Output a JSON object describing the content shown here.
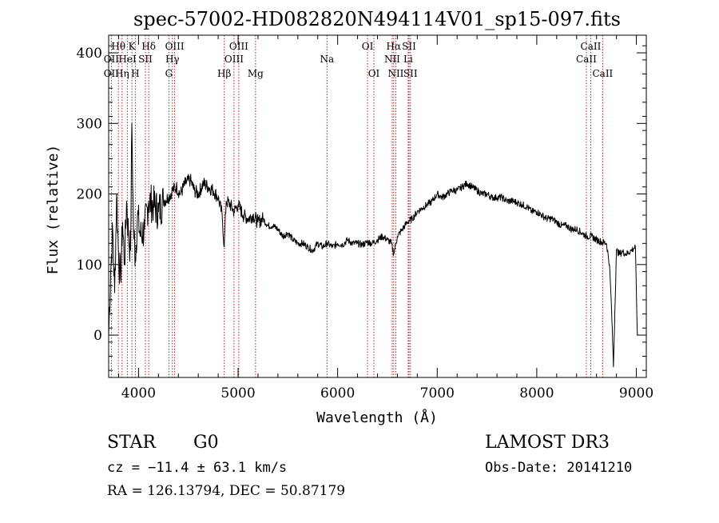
{
  "chart_data": {
    "type": "line",
    "title": "spec-57002-HD082820N494114V01_sp15-097.fits",
    "xlabel": "Wavelength (Å)",
    "ylabel": "Flux (relative)",
    "xlim": [
      3700,
      9100
    ],
    "ylim": [
      -60,
      425
    ],
    "x_ticks": [
      4000,
      5000,
      6000,
      7000,
      8000,
      9000
    ],
    "x_tick_labels": [
      "4000",
      "5000",
      "6000",
      "7000",
      "8000",
      "9000"
    ],
    "y_ticks": [
      0,
      100,
      200,
      300,
      400
    ],
    "y_tick_labels": [
      "0",
      "100",
      "200",
      "300",
      "400"
    ],
    "grid": false,
    "line_color": "#000000",
    "marker_color": "#b22222",
    "series": [
      {
        "x": [
          3700,
          3720,
          3740,
          3760,
          3780,
          3800,
          3820,
          3840,
          3860,
          3880,
          3900,
          3920,
          3933,
          3950,
          3968,
          3990,
          4020,
          4060,
          4100,
          4150,
          4200,
          4250,
          4300,
          4340,
          4380,
          4420,
          4470,
          4520,
          4560,
          4600,
          4650,
          4700,
          4750,
          4800,
          4840,
          4861,
          4880,
          4920,
          4960,
          5000,
          5050,
          5100,
          5150,
          5200,
          5250,
          5300,
          5350,
          5400,
          5450,
          5500,
          5550,
          5600,
          5650,
          5700,
          5750,
          5800,
          5850,
          5893,
          5950,
          6000,
          6050,
          6100,
          6150,
          6200,
          6250,
          6300,
          6350,
          6400,
          6450,
          6500,
          6540,
          6563,
          6600,
          6650,
          6700,
          6750,
          6800,
          6850,
          6900,
          6950,
          7000,
          7050,
          7100,
          7150,
          7200,
          7250,
          7300,
          7350,
          7400,
          7450,
          7500,
          7550,
          7600,
          7650,
          7700,
          7750,
          7800,
          7850,
          7900,
          7950,
          8000,
          8050,
          8100,
          8150,
          8200,
          8250,
          8300,
          8350,
          8400,
          8450,
          8500,
          8550,
          8600,
          8650,
          8700,
          8730,
          8750,
          8770,
          8800,
          8830,
          8860,
          8900,
          8950,
          8990,
          9010
        ],
        "y": [
          0,
          90,
          150,
          60,
          200,
          110,
          80,
          160,
          100,
          190,
          140,
          120,
          300,
          150,
          110,
          170,
          140,
          150,
          190,
          185,
          175,
          190,
          195,
          205,
          210,
          200,
          215,
          220,
          205,
          200,
          215,
          210,
          205,
          195,
          170,
          125,
          190,
          185,
          175,
          185,
          170,
          165,
          170,
          160,
          165,
          155,
          155,
          150,
          140,
          145,
          135,
          130,
          130,
          125,
          120,
          130,
          125,
          130,
          125,
          130,
          128,
          135,
          130,
          130,
          128,
          132,
          130,
          135,
          140,
          135,
          130,
          115,
          140,
          150,
          160,
          165,
          175,
          180,
          185,
          190,
          200,
          195,
          200,
          205,
          205,
          210,
          215,
          210,
          205,
          200,
          200,
          195,
          195,
          195,
          190,
          190,
          188,
          185,
          182,
          175,
          175,
          170,
          165,
          165,
          160,
          155,
          155,
          150,
          150,
          145,
          140,
          140,
          135,
          132,
          130,
          100,
          40,
          -45,
          120,
          115,
          118,
          115,
          120,
          125,
          0
        ]
      }
    ],
    "line_markers": [
      {
        "label": "OII",
        "x": 3727,
        "row": 2
      },
      {
        "label": "OII",
        "x": 3727,
        "row": 3
      },
      {
        "label": "Hθ",
        "x": 3798,
        "row": 1
      },
      {
        "label": "Hη",
        "x": 3835,
        "row": 3
      },
      {
        "label": "HeI",
        "x": 3889,
        "row": 2
      },
      {
        "label": "K",
        "x": 3934,
        "row": 1
      },
      {
        "label": "SII",
        "x": 4069,
        "row": 2
      },
      {
        "label": "H",
        "x": 3968,
        "row": 3
      },
      {
        "label": "Hδ",
        "x": 4102,
        "row": 1
      },
      {
        "label": "Hγ",
        "x": 4340,
        "row": 2
      },
      {
        "label": "OIII",
        "x": 4363,
        "row": 1
      },
      {
        "label": "G",
        "x": 4305,
        "row": 3
      },
      {
        "label": "Hβ",
        "x": 4861,
        "row": 3
      },
      {
        "label": "OIII",
        "x": 4959,
        "row": 2
      },
      {
        "label": "OIII",
        "x": 5007,
        "row": 1
      },
      {
        "label": "Mg",
        "x": 5175,
        "row": 3
      },
      {
        "label": "Na",
        "x": 5893,
        "row": 2
      },
      {
        "label": "OI",
        "x": 6300,
        "row": 1
      },
      {
        "label": "OI",
        "x": 6364,
        "row": 3
      },
      {
        "label": "Hα",
        "x": 6563,
        "row": 1
      },
      {
        "label": "NII",
        "x": 6548,
        "row": 2
      },
      {
        "label": "NII",
        "x": 6584,
        "row": 3
      },
      {
        "label": "SII",
        "x": 6717,
        "row": 1
      },
      {
        "label": "SII",
        "x": 6731,
        "row": 3
      },
      {
        "label": "Li",
        "x": 6708,
        "row": 2
      },
      {
        "label": "CaII",
        "x": 8542,
        "row": 1
      },
      {
        "label": "CaII",
        "x": 8498,
        "row": 2
      },
      {
        "label": "CaII",
        "x": 8662,
        "row": 3
      }
    ]
  },
  "info": {
    "object_class": "STAR",
    "subclass": "G0",
    "survey": "LAMOST DR3",
    "redshift": "cz = −11.4 ± 63.1 km/s",
    "obs_date": "Obs-Date: 20141210",
    "coords": "RA = 126.13794, DEC =  50.87179"
  }
}
